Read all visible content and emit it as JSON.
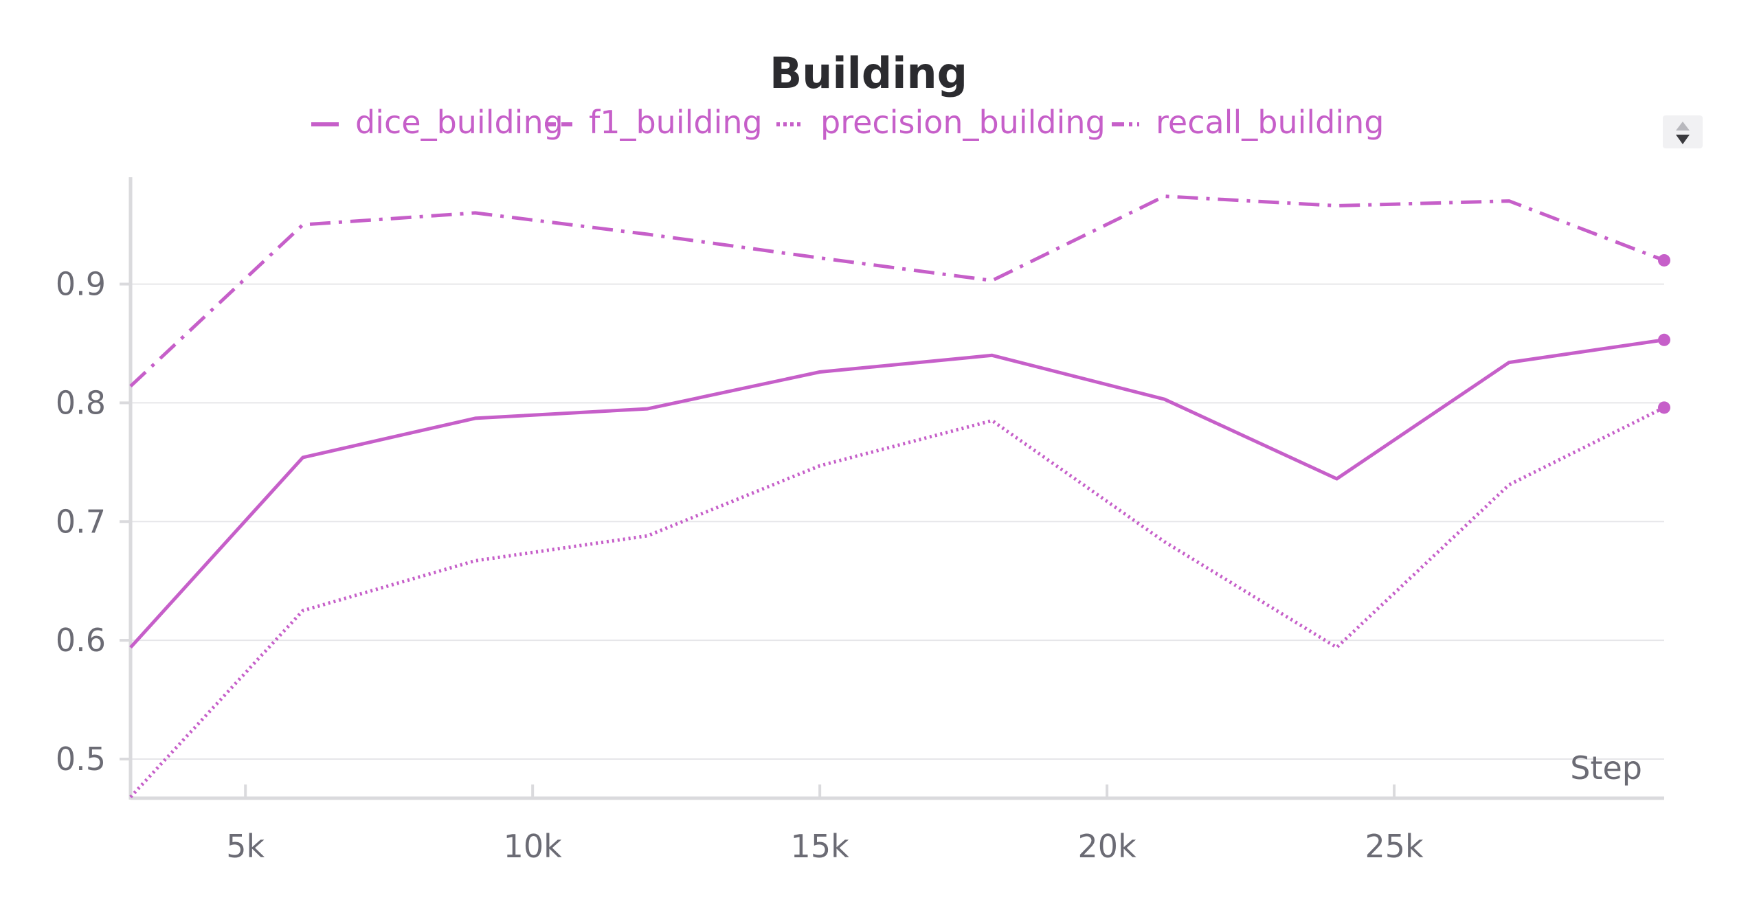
{
  "chart_data": {
    "type": "line",
    "title": "Building",
    "xlabel": "Step",
    "ylabel": "",
    "xlim": [
      3000,
      29700
    ],
    "ylim": [
      0.467,
      0.99
    ],
    "x_ticks": [
      5000,
      10000,
      15000,
      20000,
      25000
    ],
    "x_tick_labels": [
      "5k",
      "10k",
      "15k",
      "20k",
      "25k"
    ],
    "y_ticks": [
      0.5,
      0.6,
      0.7,
      0.8,
      0.9
    ],
    "y_tick_labels": [
      "0.5",
      "0.6",
      "0.7",
      "0.8",
      "0.9"
    ],
    "grid": true,
    "legend_position": "top",
    "x": [
      3000,
      6000,
      9000,
      12000,
      15000,
      18000,
      21000,
      24000,
      27000,
      29700
    ],
    "series": [
      {
        "name": "dice_building",
        "dash": "solid",
        "color": "#c65fc9",
        "values": [
          0.594,
          0.754,
          0.787,
          0.795,
          0.826,
          0.84,
          0.803,
          0.736,
          0.834,
          0.853
        ]
      },
      {
        "name": "f1_building",
        "dash": "dashed",
        "color": "#c65fc9",
        "values": [
          null,
          null,
          null,
          null,
          null,
          null,
          null,
          null,
          null,
          null
        ]
      },
      {
        "name": "precision_building",
        "dash": "dotted",
        "color": "#c65fc9",
        "values": [
          0.468,
          0.625,
          0.667,
          0.688,
          0.747,
          0.785,
          0.683,
          0.594,
          0.731,
          0.796
        ]
      },
      {
        "name": "recall_building",
        "dash": "dashdot",
        "color": "#c65fc9",
        "values": [
          0.814,
          0.95,
          0.96,
          0.942,
          0.922,
          0.903,
          0.974,
          0.966,
          0.97,
          0.92
        ]
      }
    ]
  },
  "colors": {
    "series": "#c65fc9",
    "title": "#2b2b2f",
    "tick_text": "#6b6b74",
    "grid": "#e6e6e9",
    "axis": "#dadadd"
  }
}
